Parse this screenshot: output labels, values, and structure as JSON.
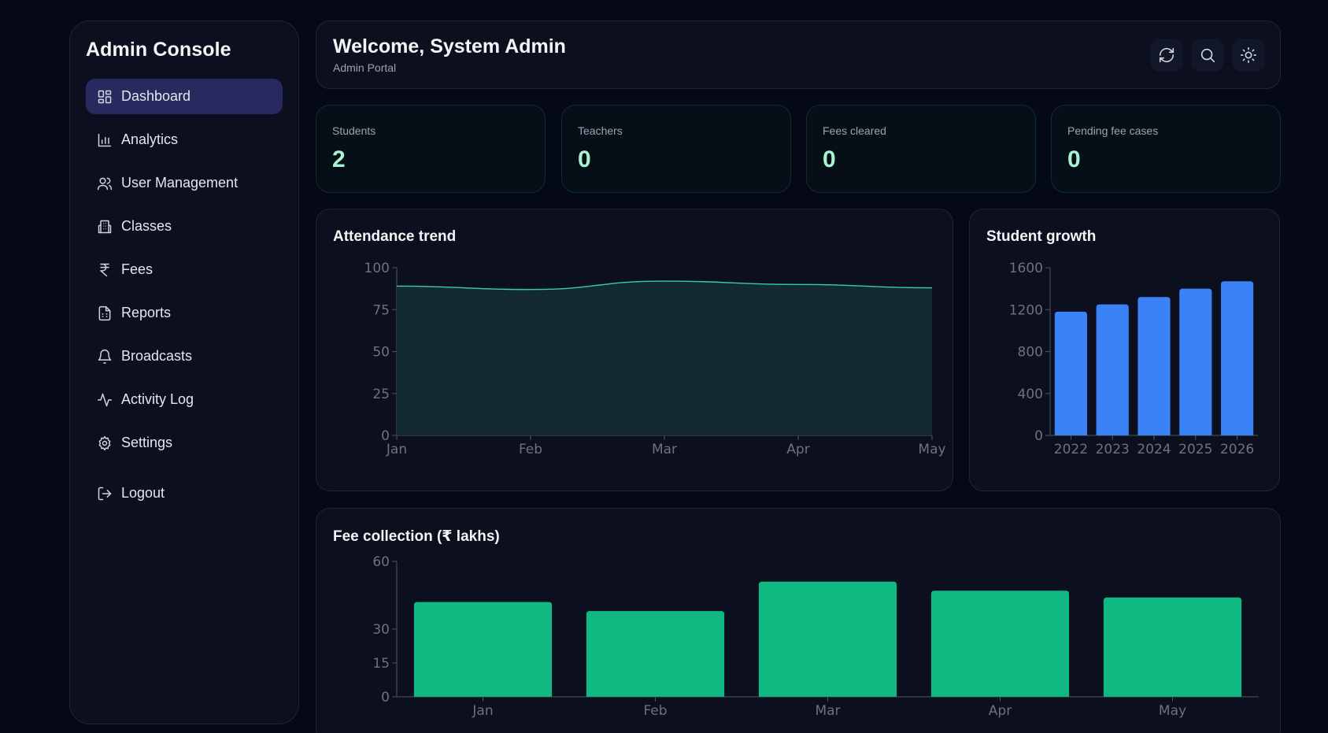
{
  "sidebar": {
    "brand": "Admin Console",
    "items": [
      {
        "label": "Dashboard",
        "icon": "dashboard-icon",
        "active": true
      },
      {
        "label": "Analytics",
        "icon": "bar-chart-icon"
      },
      {
        "label": "User Management",
        "icon": "users-icon"
      },
      {
        "label": "Classes",
        "icon": "building-icon"
      },
      {
        "label": "Fees",
        "icon": "rupee-icon"
      },
      {
        "label": "Reports",
        "icon": "file-text-icon"
      },
      {
        "label": "Broadcasts",
        "icon": "bell-icon"
      },
      {
        "label": "Activity Log",
        "icon": "activity-icon"
      },
      {
        "label": "Settings",
        "icon": "gear-icon"
      }
    ],
    "logout": {
      "label": "Logout",
      "icon": "logout-icon"
    }
  },
  "header": {
    "title": "Welcome, System Admin",
    "subtitle": "Admin Portal",
    "actions": [
      "refresh-icon",
      "search-icon",
      "sun-icon"
    ]
  },
  "stats": [
    {
      "label": "Students",
      "value": "2"
    },
    {
      "label": "Teachers",
      "value": "0"
    },
    {
      "label": "Fees cleared",
      "value": "0"
    },
    {
      "label": "Pending fee cases",
      "value": "0"
    }
  ],
  "colors": {
    "accent_nav": "#27295f",
    "stat_value": "#a7f3d0",
    "area_line": "#34d399",
    "area_fill": "#132a32",
    "bar_blue": "#3b82f6",
    "bar_green": "#10b981"
  },
  "chart_data": [
    {
      "type": "area",
      "title": "Attendance trend",
      "categories": [
        "Jan",
        "Feb",
        "Mar",
        "Apr",
        "May"
      ],
      "values": [
        89,
        87,
        92,
        90,
        88
      ],
      "ylim": [
        0,
        100
      ],
      "yticks": [
        0,
        25,
        50,
        75,
        100
      ],
      "grid": false
    },
    {
      "type": "bar",
      "title": "Student growth",
      "categories": [
        "2022",
        "2023",
        "2024",
        "2025",
        "2026"
      ],
      "values": [
        1180,
        1250,
        1320,
        1400,
        1470
      ],
      "ylim": [
        0,
        1600
      ],
      "yticks": [
        0,
        400,
        800,
        1200,
        1600
      ],
      "grid": false
    },
    {
      "type": "bar",
      "title": "Fee collection (₹ lakhs)",
      "categories": [
        "Jan",
        "Feb",
        "Mar",
        "Apr",
        "May"
      ],
      "values": [
        42,
        38,
        51,
        47,
        44
      ],
      "ylim": [
        0,
        60
      ],
      "yticks": [
        0,
        15,
        30,
        60
      ],
      "grid": false
    }
  ]
}
